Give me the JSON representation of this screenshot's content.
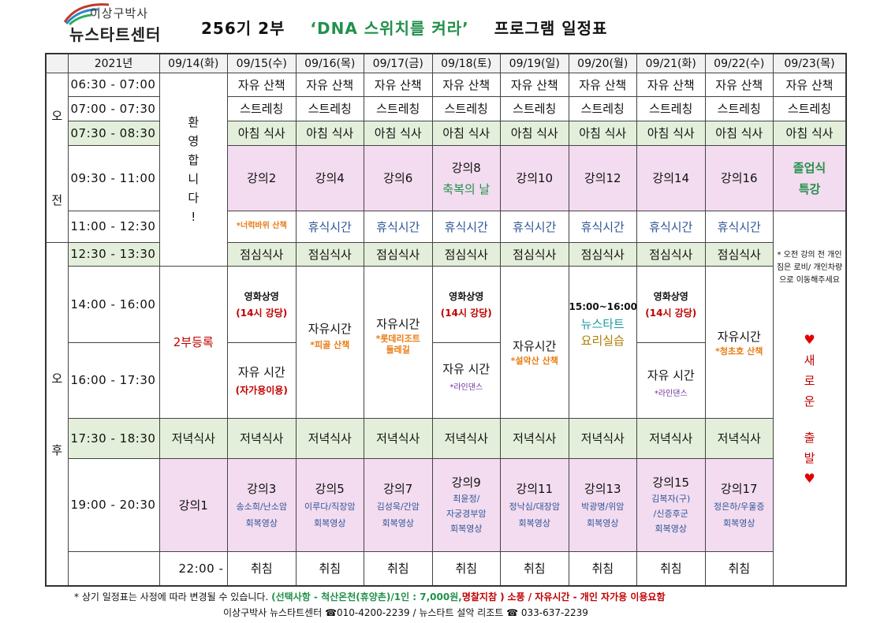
{
  "logo": {
    "line1": "이상구박사",
    "line2": "뉴스타트센터"
  },
  "title": {
    "part1": "256기 2부",
    "part2": "‘DNA 스위치를 켜라’",
    "part3": "프로그램 일정표"
  },
  "table": {
    "year": "2021년",
    "dates": [
      "09/14(화)",
      "09/15(수)",
      "09/16(목)",
      "09/17(금)",
      "09/18(토)",
      "09/19(일)",
      "09/20(월)",
      "09/21(화)",
      "09/22(수)",
      "09/23(목)"
    ],
    "am": [
      "오",
      "전"
    ],
    "pm": [
      "오",
      "후"
    ],
    "times": [
      "06:30  -  07:00",
      "07:00  -  07:30",
      "07:30  -  08:30",
      "09:30  -  11:00",
      "11:00  -  12:30",
      "12:30  -  13:30",
      "14:00  -  16:00",
      "16:00  -  17:30",
      "17:30  -  18:30",
      "19:00  -  20:30",
      "22:00  -"
    ],
    "walk": "자유 산책",
    "stretch": "스트레칭",
    "breakfast": "아침 식사",
    "welcome": [
      "환",
      "영",
      "합",
      "니",
      "다",
      "!"
    ],
    "lectures_am": [
      "강의2",
      "강의4",
      "강의6",
      "강의8",
      "강의10",
      "강의12",
      "강의14",
      "강의16"
    ],
    "blessing": "축복의 날",
    "graduation": [
      "졸업식",
      "특강"
    ],
    "rock_walk": "*너럭바위 산책",
    "rest": "휴식시간",
    "lunch": "점심식사",
    "note_checkout": "* 오전 강의 전 개인 짐은 로비/ 개인차량으로 이동해주세요",
    "registration": "2부등록",
    "movie": "영화상영",
    "movie_room": "(14시 강당)",
    "free_time_spaced": "자유 시간",
    "free_car": "(자가용이용)",
    "free_time": "자유시간",
    "valley_walk": "*피골 산책",
    "lotte": "*롯데리조트 둘레길",
    "line_dance": "*라인댄스",
    "seorak_walk": "*설악산 산책",
    "cooking_time": "15:00~16:00",
    "cooking_name": "뉴스타트",
    "cooking_class": "요리실습",
    "cheongcho_walk": "*청초호 산책",
    "new_start": [
      "♥",
      "새",
      "로",
      "운",
      "출",
      "발",
      "♥"
    ],
    "dinner": "저녁식사",
    "lecture1": "강의1",
    "evening": [
      {
        "name": "강의3",
        "sub": "송소희/난소암",
        "sub2": "회복영상"
      },
      {
        "name": "강의5",
        "sub": "이루다/직장암",
        "sub2": "회복영상"
      },
      {
        "name": "강의7",
        "sub": "김성욱/간암",
        "sub2": "회복영상"
      },
      {
        "name": "강의9",
        "sub": "최윤정/",
        "sub1b": "자궁경부암",
        "sub2": "회복영상"
      },
      {
        "name": "강의11",
        "sub": "정낙심/대장암",
        "sub2": "회복영상"
      },
      {
        "name": "강의13",
        "sub": "박광명/위암",
        "sub2": "회복영상"
      },
      {
        "name": "강의15",
        "sub": "김복자(구)",
        "sub1b": "/신증후군",
        "sub2": "회복영상"
      },
      {
        "name": "강의17",
        "sub": "정은하/우울증",
        "sub2": "회복영상"
      }
    ],
    "sleep": "취침"
  },
  "footer": {
    "line1a": "* 상기 일정표는 사정에 따라 변경될 수 있습니다.",
    "line1b": "(선택사항 - 척산온천(휴양촌)/1인 : 7,000원,",
    "line1c": "명찰지참 )",
    "line1d": "소풍 / 자유시간 - 개인 자가용 이용요함",
    "line2": "이상구박사 뉴스타트센터 ☎010-4200-2239 /  뉴스타트 설악 리조트 ☎ 033-637-2239"
  }
}
